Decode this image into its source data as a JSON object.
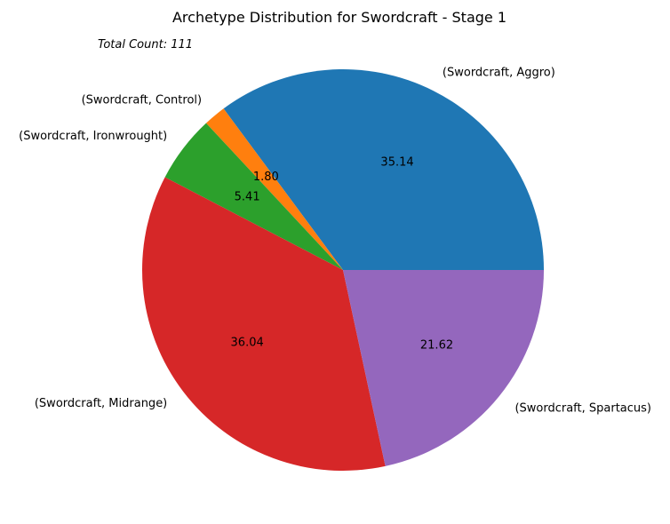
{
  "chart_data": {
    "type": "pie",
    "title": "Archetype Distribution for Swordcraft - Stage 1",
    "annotation": "Total Count: 111",
    "slices": [
      {
        "label": "(Swordcraft, Aggro)",
        "value": 35.14,
        "pct_label": "35.14",
        "color": "#1f77b4"
      },
      {
        "label": "(Swordcraft, Control)",
        "value": 1.8,
        "pct_label": "1.80",
        "color": "#ff7f0e"
      },
      {
        "label": "(Swordcraft, Ironwrought)",
        "value": 5.41,
        "pct_label": "5.41",
        "color": "#2ca02c"
      },
      {
        "label": "(Swordcraft, Midrange)",
        "value": 36.04,
        "pct_label": "36.04",
        "color": "#d62728"
      },
      {
        "label": "(Swordcraft, Spartacus)",
        "value": 21.62,
        "pct_label": "21.62",
        "color": "#9467bd"
      }
    ]
  }
}
